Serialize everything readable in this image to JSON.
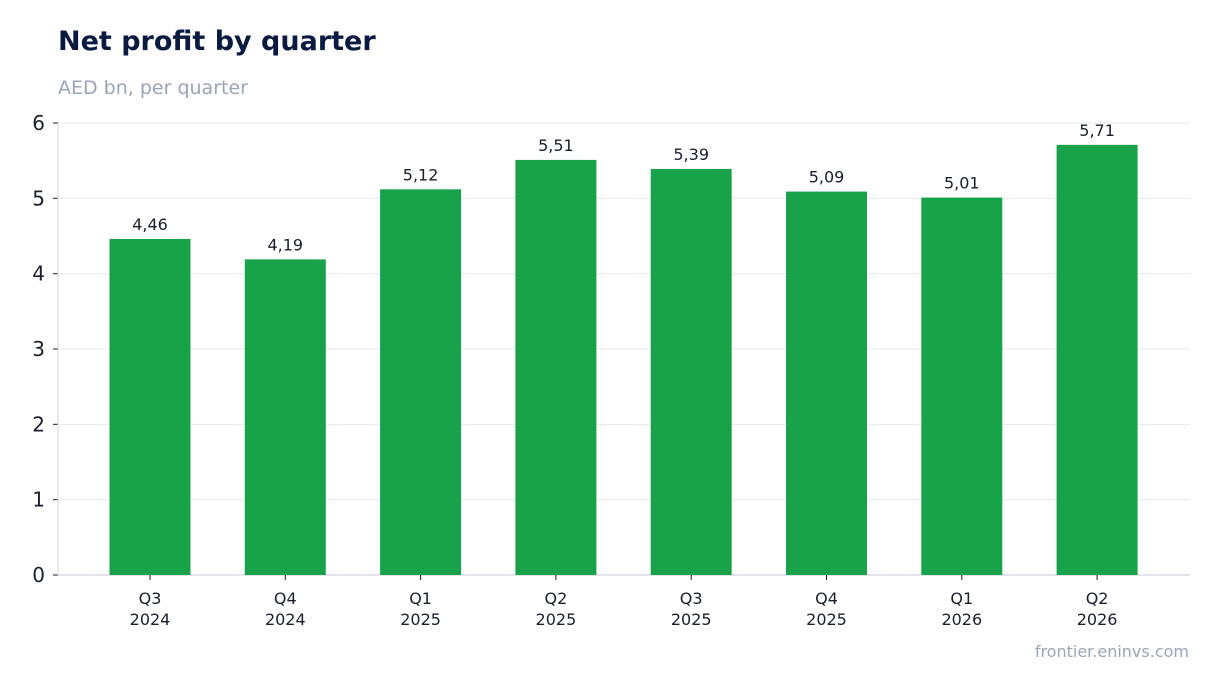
{
  "header": {
    "title": "Net profit by quarter",
    "subtitle": "AED bn, per quarter"
  },
  "footer": {
    "source": "frontier.eninvs.com"
  },
  "chart_data": {
    "type": "bar",
    "title": "Net profit by quarter",
    "subtitle": "AED bn, per quarter",
    "xlabel": "",
    "ylabel": "",
    "categories": [
      [
        "Q3",
        "2024"
      ],
      [
        "Q4",
        "2024"
      ],
      [
        "Q1",
        "2025"
      ],
      [
        "Q2",
        "2025"
      ],
      [
        "Q3",
        "2025"
      ],
      [
        "Q4",
        "2025"
      ],
      [
        "Q1",
        "2026"
      ],
      [
        "Q2",
        "2026"
      ]
    ],
    "values": [
      4.46,
      4.19,
      5.12,
      5.51,
      5.39,
      5.09,
      5.01,
      5.71
    ],
    "value_labels": [
      "4,46",
      "4,19",
      "5,12",
      "5,51",
      "5,39",
      "5,09",
      "5,01",
      "5,71"
    ],
    "yticks": [
      0,
      1,
      2,
      3,
      4,
      5,
      6
    ],
    "ylim": [
      0,
      6
    ],
    "grid": true,
    "legend": "none",
    "colors": {
      "bar": "#18a34a",
      "grid": "#e5e8ee",
      "axis": "#cfd4dc",
      "text": "#1a1f2e"
    }
  }
}
